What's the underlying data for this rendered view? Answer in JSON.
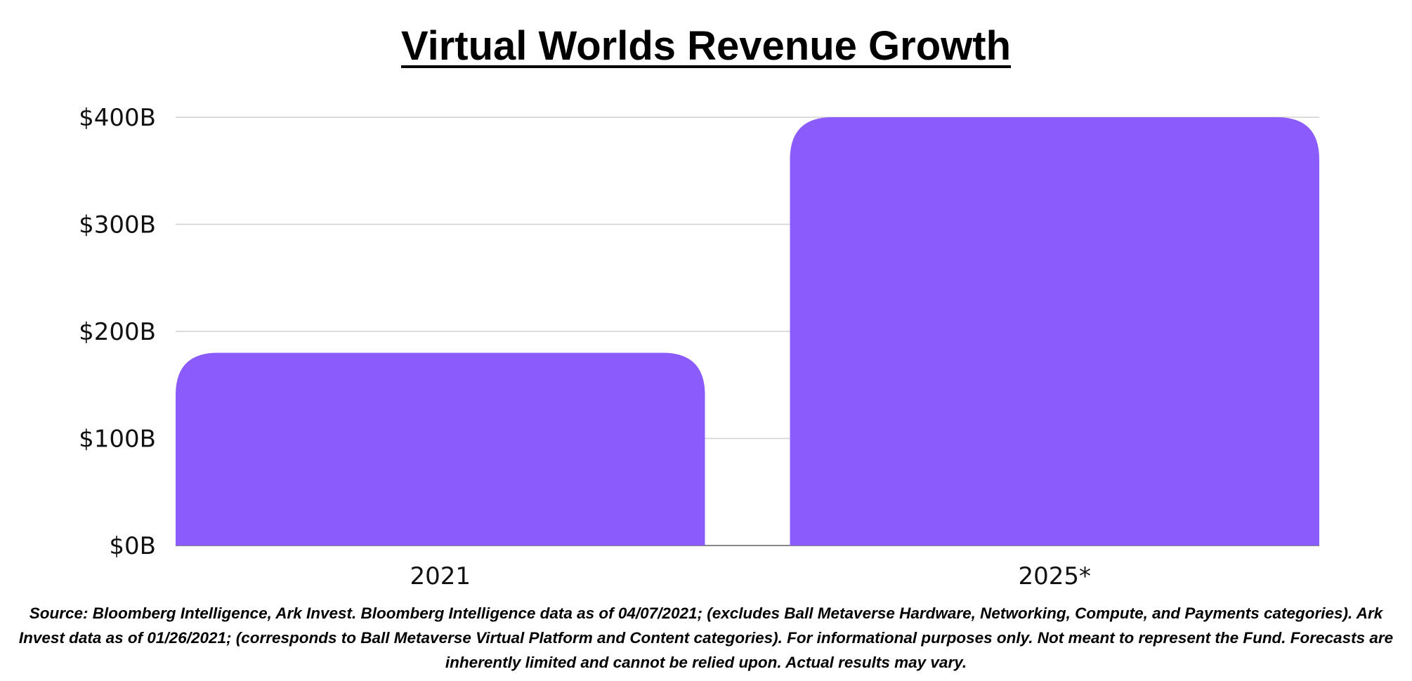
{
  "chart_data": {
    "type": "bar",
    "title": "Virtual Worlds Revenue Growth",
    "categories": [
      "2021",
      "2025*"
    ],
    "values": [
      180,
      400
    ],
    "unit": "$B",
    "ylim": [
      0,
      400
    ],
    "yticks": [
      0,
      100,
      200,
      300,
      400
    ],
    "ytick_labels": [
      "$0B",
      "$100B",
      "$200B",
      "$300B",
      "$400B"
    ],
    "grid": true,
    "legend": "none",
    "bar_color": "#8B5CFB",
    "xlabel": "",
    "ylabel": ""
  },
  "footnote": "Source: Bloomberg Intelligence, Ark Invest. Bloomberg Intelligence data as of 04/07/2021; (excludes Ball Metaverse Hardware, Networking, Compute, and Payments categories). Ark Invest data as of  01/26/2021; (corresponds to Ball Metaverse Virtual Platform and Content categories). For informational purposes only. Not meant to represent the Fund. Forecasts are inherently limited and cannot be relied upon. Actual results may vary."
}
